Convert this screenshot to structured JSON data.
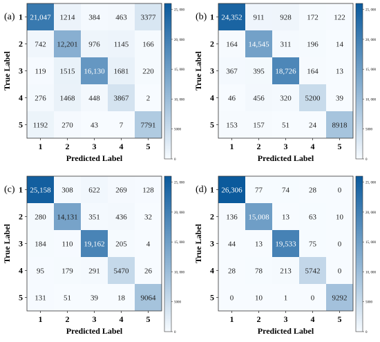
{
  "colors": {
    "low": "#f7fbff",
    "high": "#0b5a9c",
    "frame": "#333333",
    "text_dark": "#222222",
    "text_light": "#ffffff"
  },
  "chart_data": [
    {
      "type": "heatmap",
      "panel_label": "(a)",
      "xlabel": "Predicted Label",
      "ylabel": "True Label",
      "x_categories": [
        "1",
        "2",
        "3",
        "4",
        "5"
      ],
      "y_categories": [
        "1",
        "2",
        "3",
        "4",
        "5"
      ],
      "values": [
        [
          21047,
          1214,
          384,
          463,
          3377
        ],
        [
          742,
          12201,
          976,
          1145,
          166
        ],
        [
          119,
          1515,
          16130,
          1681,
          220
        ],
        [
          276,
          1468,
          448,
          3867,
          2
        ],
        [
          1192,
          270,
          43,
          7,
          7791
        ]
      ],
      "value_labels": [
        [
          "21,047",
          "1214",
          "384",
          "463",
          "3377"
        ],
        [
          "742",
          "12,201",
          "976",
          "1145",
          "166"
        ],
        [
          "119",
          "1515",
          "16,130",
          "1681",
          "220"
        ],
        [
          "276",
          "1468",
          "448",
          "3867",
          "2"
        ],
        [
          "1192",
          "270",
          "43",
          "7",
          "7791"
        ]
      ],
      "colorbar": {
        "range": [
          0,
          26000
        ],
        "ticks": [
          0,
          5000,
          10000,
          15000,
          20000,
          25000
        ],
        "tick_labels": [
          "0",
          "5000",
          "10, 000",
          "15, 000",
          "20, 000",
          "25, 000"
        ]
      }
    },
    {
      "type": "heatmap",
      "panel_label": "(b)",
      "xlabel": "Predicted Label",
      "ylabel": "True Label",
      "x_categories": [
        "1",
        "2",
        "3",
        "4",
        "5"
      ],
      "y_categories": [
        "1",
        "2",
        "3",
        "4",
        "5"
      ],
      "values": [
        [
          24352,
          911,
          928,
          172,
          122
        ],
        [
          164,
          14545,
          311,
          196,
          14
        ],
        [
          367,
          395,
          18726,
          164,
          13
        ],
        [
          46,
          456,
          320,
          5200,
          39
        ],
        [
          153,
          157,
          51,
          24,
          8918
        ]
      ],
      "value_labels": [
        [
          "24,352",
          "911",
          "928",
          "172",
          "122"
        ],
        [
          "164",
          "14,545",
          "311",
          "196",
          "14"
        ],
        [
          "367",
          "395",
          "18,726",
          "164",
          "13"
        ],
        [
          "46",
          "456",
          "320",
          "5200",
          "39"
        ],
        [
          "153",
          "157",
          "51",
          "24",
          "8918"
        ]
      ],
      "colorbar": {
        "range": [
          0,
          26000
        ],
        "ticks": [
          0,
          5000,
          10000,
          15000,
          20000,
          25000
        ],
        "tick_labels": [
          "0",
          "5000",
          "10, 000",
          "15, 000",
          "20, 000",
          "25, 000"
        ]
      }
    },
    {
      "type": "heatmap",
      "panel_label": "(c)",
      "xlabel": "Predicted Label",
      "ylabel": "True Label",
      "x_categories": [
        "1",
        "2",
        "3",
        "4",
        "5"
      ],
      "y_categories": [
        "1",
        "2",
        "3",
        "4",
        "5"
      ],
      "values": [
        [
          25158,
          308,
          622,
          269,
          128
        ],
        [
          280,
          14131,
          351,
          436,
          32
        ],
        [
          184,
          110,
          19162,
          205,
          4
        ],
        [
          95,
          179,
          291,
          5470,
          26
        ],
        [
          131,
          51,
          39,
          18,
          9064
        ]
      ],
      "value_labels": [
        [
          "25,158",
          "308",
          "622",
          "269",
          "128"
        ],
        [
          "280",
          "14,131",
          "351",
          "436",
          "32"
        ],
        [
          "184",
          "110",
          "19,162",
          "205",
          "4"
        ],
        [
          "95",
          "179",
          "291",
          "5470",
          "26"
        ],
        [
          "131",
          "51",
          "39",
          "18",
          "9064"
        ]
      ],
      "colorbar": {
        "range": [
          0,
          26000
        ],
        "ticks": [
          0,
          5000,
          10000,
          15000,
          20000,
          25000
        ],
        "tick_labels": [
          "0",
          "5000",
          "10, 000",
          "15, 000",
          "20, 000",
          "25, 000"
        ]
      }
    },
    {
      "type": "heatmap",
      "panel_label": "(d)",
      "xlabel": "Predicted Label",
      "ylabel": "True Label",
      "x_categories": [
        "1",
        "2",
        "3",
        "4",
        "5"
      ],
      "y_categories": [
        "1",
        "2",
        "3",
        "4",
        "5"
      ],
      "values": [
        [
          26306,
          77,
          74,
          28,
          0
        ],
        [
          136,
          15008,
          13,
          63,
          10
        ],
        [
          44,
          13,
          19533,
          75,
          0
        ],
        [
          28,
          78,
          213,
          5742,
          0
        ],
        [
          0,
          10,
          1,
          0,
          9292
        ]
      ],
      "value_labels": [
        [
          "26,306",
          "77",
          "74",
          "28",
          "0"
        ],
        [
          "136",
          "15,008",
          "13",
          "63",
          "10"
        ],
        [
          "44",
          "13",
          "19,533",
          "75",
          "0"
        ],
        [
          "28",
          "78",
          "213",
          "5742",
          "0"
        ],
        [
          "0",
          "10",
          "1",
          "0",
          "9292"
        ]
      ],
      "colorbar": {
        "range": [
          0,
          26000
        ],
        "ticks": [
          0,
          5000,
          10000,
          15000,
          20000,
          25000
        ],
        "tick_labels": [
          "0",
          "5000",
          "10, 000",
          "15, 000",
          "20, 000",
          "25, 000"
        ]
      }
    }
  ]
}
